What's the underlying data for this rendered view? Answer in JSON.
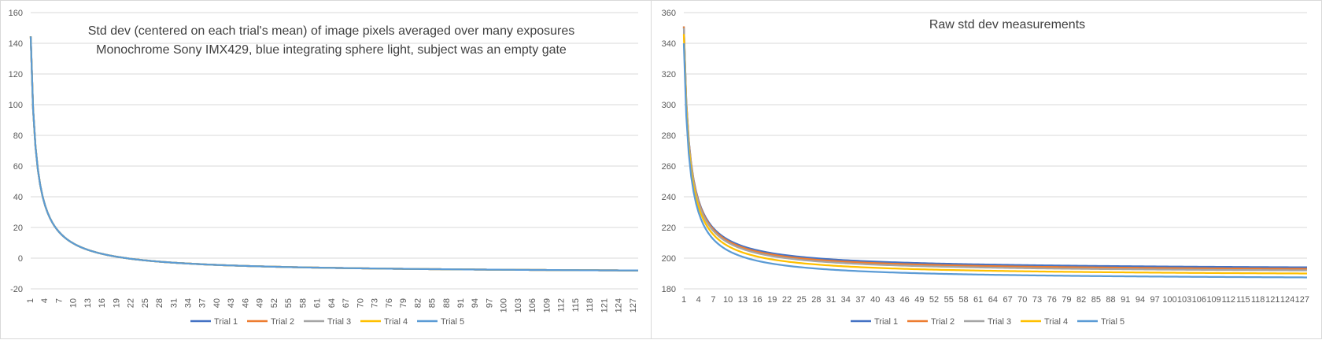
{
  "chart_data": [
    {
      "type": "line",
      "title_lines": [
        "Std dev (centered on each trial's mean) of image pixels averaged over many exposures",
        "Monochrome Sony IMX429, blue integrating sphere light, subject was an empty gate"
      ],
      "xlabel": "",
      "ylabel": "",
      "ylim": [
        -20,
        160
      ],
      "y_ticks": [
        -20,
        0,
        20,
        40,
        60,
        80,
        100,
        120,
        140,
        160
      ],
      "x_range": [
        1,
        128
      ],
      "x_ticks": [
        1,
        4,
        7,
        10,
        13,
        16,
        19,
        22,
        25,
        28,
        31,
        34,
        37,
        40,
        43,
        46,
        49,
        52,
        55,
        58,
        61,
        64,
        67,
        70,
        73,
        76,
        79,
        82,
        85,
        88,
        91,
        94,
        97,
        100,
        103,
        106,
        109,
        112,
        115,
        118,
        121,
        124,
        127
      ],
      "grid": true,
      "legend": "bottom",
      "curve_model": "a + b / x^p",
      "series": [
        {
          "name": "Trial 1",
          "color": "#4472c4",
          "a": -10.0,
          "b": 154.5,
          "p": 0.9
        },
        {
          "name": "Trial 2",
          "color": "#ed7d31",
          "a": -10.0,
          "b": 154.5,
          "p": 0.9
        },
        {
          "name": "Trial 3",
          "color": "#a5a5a5",
          "a": -10.0,
          "b": 154.5,
          "p": 0.9
        },
        {
          "name": "Trial 4",
          "color": "#ffc000",
          "a": -10.0,
          "b": 154.5,
          "p": 0.9
        },
        {
          "name": "Trial 5",
          "color": "#5b9bd5",
          "a": -10.0,
          "b": 154.5,
          "p": 0.9
        }
      ]
    },
    {
      "type": "line",
      "title_lines": [
        "Raw std dev measurements"
      ],
      "xlabel": "",
      "ylabel": "",
      "ylim": [
        180,
        360
      ],
      "y_ticks": [
        180,
        200,
        220,
        240,
        260,
        280,
        300,
        320,
        340,
        360
      ],
      "x_range": [
        1,
        128
      ],
      "x_ticks": [
        1,
        4,
        7,
        10,
        13,
        16,
        19,
        22,
        25,
        28,
        31,
        34,
        37,
        40,
        43,
        46,
        49,
        52,
        55,
        58,
        61,
        64,
        67,
        70,
        73,
        76,
        79,
        82,
        85,
        88,
        91,
        94,
        97,
        100,
        103,
        106,
        109,
        112,
        115,
        118,
        121,
        124,
        127
      ],
      "grid": true,
      "legend": "bottom",
      "curve_model": "a + b / x^p",
      "series": [
        {
          "name": "Trial 1",
          "color": "#4472c4",
          "a": 192.0,
          "b": 159.0,
          "p": 0.9
        },
        {
          "name": "Trial 2",
          "color": "#ed7d31",
          "a": 191.0,
          "b": 160.0,
          "p": 0.9
        },
        {
          "name": "Trial 3",
          "color": "#a5a5a5",
          "a": 190.0,
          "b": 160.0,
          "p": 0.9
        },
        {
          "name": "Trial 4",
          "color": "#ffc000",
          "a": 188.0,
          "b": 158.0,
          "p": 0.9
        },
        {
          "name": "Trial 5",
          "color": "#5b9bd5",
          "a": 185.5,
          "b": 154.5,
          "p": 0.9
        }
      ]
    }
  ]
}
